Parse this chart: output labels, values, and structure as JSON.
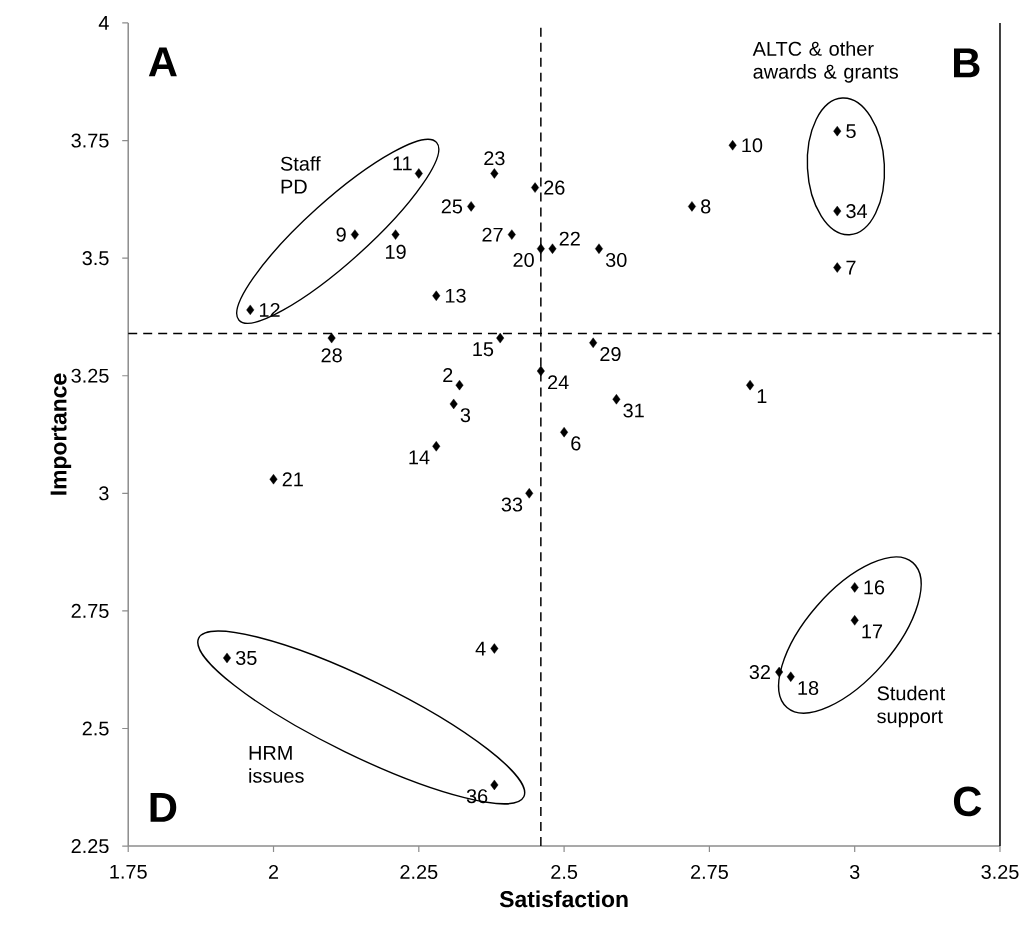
{
  "chart_data": {
    "type": "scatter",
    "xlabel": "Satisfaction",
    "ylabel": "Importance",
    "x": [
      2.82,
      2.32,
      2.31,
      2.38,
      2.97,
      2.5,
      2.97,
      2.72,
      2.14,
      2.79,
      2.25,
      1.96,
      2.28,
      2.28,
      2.39,
      3.0,
      3.0,
      2.89,
      2.21,
      2.46,
      2.0,
      2.48,
      2.38,
      2.46,
      2.34,
      2.45,
      2.41,
      2.1,
      2.55,
      2.56,
      2.59,
      2.87,
      2.44,
      2.97,
      1.92,
      2.38
    ],
    "values": [
      3.23,
      3.23,
      3.19,
      2.67,
      3.77,
      3.13,
      3.48,
      3.61,
      3.55,
      3.74,
      3.68,
      3.39,
      3.42,
      3.1,
      3.33,
      2.8,
      2.73,
      2.61,
      3.55,
      3.52,
      3.03,
      3.52,
      3.68,
      3.26,
      3.61,
      3.65,
      3.55,
      3.33,
      3.32,
      3.52,
      3.2,
      2.62,
      3.0,
      3.6,
      2.65,
      2.38
    ],
    "color": "#000000",
    "marker": "diamond",
    "xlim": [
      1.75,
      3.25
    ],
    "ylim": [
      2.25,
      4
    ],
    "xticks": [
      1.75,
      2,
      2.25,
      2.5,
      2.75,
      3,
      3.25
    ],
    "yticks": [
      2.25,
      2.5,
      2.75,
      3,
      3.25,
      3.5,
      3.75,
      4
    ],
    "ref_lines": [
      {
        "axis": "x",
        "value": 2.46,
        "color": "#000000",
        "line_style": "dashed"
      },
      {
        "axis": "y",
        "value": 3.34,
        "color": "#000000",
        "line_style": "dashed"
      }
    ],
    "annotations": [
      {
        "text": "1",
        "x": 2.82,
        "y": 3.23
      },
      {
        "text": "2",
        "x": 2.32,
        "y": 3.23
      },
      {
        "text": "3",
        "x": 2.31,
        "y": 3.19
      },
      {
        "text": "4",
        "x": 2.38,
        "y": 2.67
      },
      {
        "text": "5",
        "x": 2.97,
        "y": 3.77
      },
      {
        "text": "6",
        "x": 2.5,
        "y": 3.13
      },
      {
        "text": "7",
        "x": 2.97,
        "y": 3.48
      },
      {
        "text": "8",
        "x": 2.72,
        "y": 3.61
      },
      {
        "text": "9",
        "x": 2.14,
        "y": 3.55
      },
      {
        "text": "10",
        "x": 2.79,
        "y": 3.74
      },
      {
        "text": "11",
        "x": 2.25,
        "y": 3.68
      },
      {
        "text": "12",
        "x": 1.96,
        "y": 3.39
      },
      {
        "text": "13",
        "x": 2.28,
        "y": 3.42
      },
      {
        "text": "14",
        "x": 2.28,
        "y": 3.1
      },
      {
        "text": "15",
        "x": 2.39,
        "y": 3.33
      },
      {
        "text": "16",
        "x": 3.0,
        "y": 2.8
      },
      {
        "text": "17",
        "x": 3.0,
        "y": 2.73
      },
      {
        "text": "18",
        "x": 2.89,
        "y": 2.61
      },
      {
        "text": "19",
        "x": 2.21,
        "y": 3.55
      },
      {
        "text": "20",
        "x": 2.46,
        "y": 3.52
      },
      {
        "text": "21",
        "x": 2.0,
        "y": 3.03
      },
      {
        "text": "22",
        "x": 2.48,
        "y": 3.52
      },
      {
        "text": "23",
        "x": 2.38,
        "y": 3.68
      },
      {
        "text": "24",
        "x": 2.46,
        "y": 3.26
      },
      {
        "text": "25",
        "x": 2.34,
        "y": 3.61
      },
      {
        "text": "26",
        "x": 2.45,
        "y": 3.65
      },
      {
        "text": "27",
        "x": 2.41,
        "y": 3.55
      },
      {
        "text": "28",
        "x": 2.1,
        "y": 3.33
      },
      {
        "text": "29",
        "x": 2.55,
        "y": 3.32
      },
      {
        "text": "30",
        "x": 2.56,
        "y": 3.52
      },
      {
        "text": "31",
        "x": 2.59,
        "y": 3.2
      },
      {
        "text": "32",
        "x": 2.87,
        "y": 2.62
      },
      {
        "text": "33",
        "x": 2.44,
        "y": 3.0
      },
      {
        "text": "34",
        "x": 2.97,
        "y": 3.6
      },
      {
        "text": "35",
        "x": 1.92,
        "y": 2.65
      },
      {
        "text": "36",
        "x": 2.38,
        "y": 2.38
      },
      "Staff PD",
      "ALTC & other awards & grants",
      "HRM issues",
      "Student support",
      "A",
      "B",
      "C",
      "D"
    ]
  }
}
